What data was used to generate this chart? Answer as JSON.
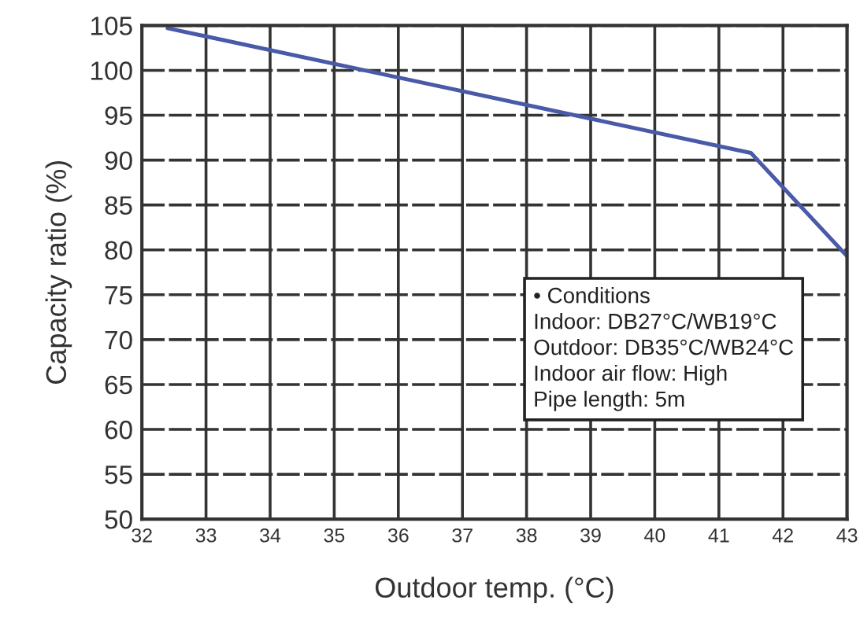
{
  "chart_data": {
    "type": "line",
    "xlabel": "Outdoor temp. (°C)",
    "ylabel": "Capacity ratio (%)",
    "x": [
      32.4,
      41.5,
      43
    ],
    "series": [
      {
        "color": "#4a5aa8",
        "values": [
          104.7,
          90.8,
          79.3
        ]
      }
    ],
    "xlim": [
      32,
      43
    ],
    "xticks": [
      32,
      33,
      34,
      35,
      36,
      37,
      38,
      39,
      40,
      41,
      42,
      43
    ],
    "ylim": [
      50,
      105
    ],
    "yticks": [
      50,
      55,
      60,
      65,
      70,
      75,
      80,
      85,
      90,
      95,
      100,
      105
    ],
    "grid": true,
    "marker": "none",
    "line_style": "solid",
    "legend": false,
    "annotations": [
      "• Conditions\nIndoor: DB27°C/WB19°C\nOutdoor: DB35°C/WB24°C\nIndoor air flow: High\nPipe length: 5m"
    ]
  }
}
